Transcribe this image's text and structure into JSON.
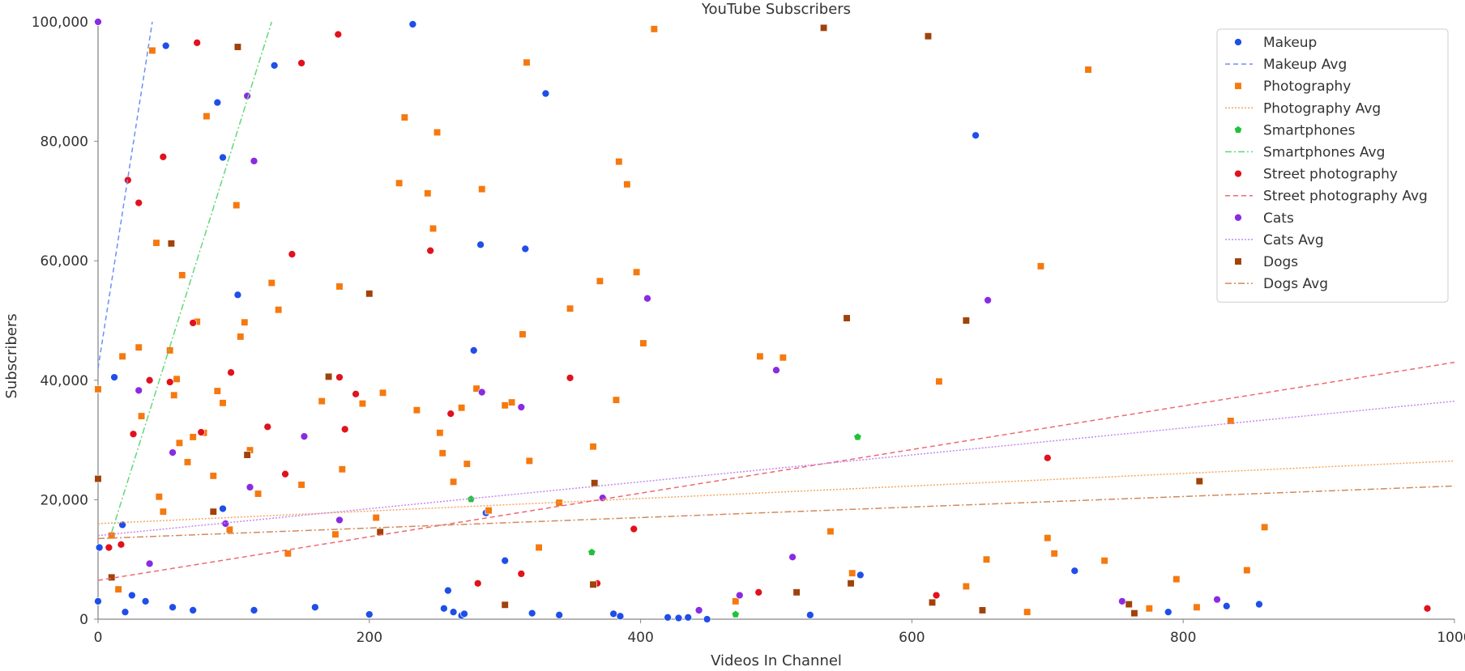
{
  "chart_data": {
    "type": "scatter",
    "title": "YouTube Subscribers",
    "xlabel": "Videos In Channel",
    "ylabel": "Subscribers",
    "xlim": [
      0,
      1000
    ],
    "ylim": [
      0,
      100000
    ],
    "x_ticks": [
      0,
      200,
      400,
      600,
      800,
      1000
    ],
    "x_tick_labels": [
      "0",
      "200",
      "400",
      "600",
      "800",
      "1000"
    ],
    "y_ticks": [
      0,
      20000,
      40000,
      60000,
      80000,
      100000
    ],
    "y_tick_labels": [
      "0",
      "20,000",
      "40,000",
      "60,000",
      "80,000",
      "100,000"
    ],
    "grid": false,
    "legend_position": "top-right",
    "series": [
      {
        "name": "Makeup",
        "color": "#1f4ee8",
        "marker": "circle",
        "points": [
          [
            0,
            100000
          ],
          [
            0,
            3000
          ],
          [
            1,
            12000
          ],
          [
            12,
            40500
          ],
          [
            18,
            15800
          ],
          [
            20,
            1200
          ],
          [
            25,
            4000
          ],
          [
            35,
            3000
          ],
          [
            50,
            96000
          ],
          [
            55,
            2000
          ],
          [
            70,
            1500
          ],
          [
            88,
            86500
          ],
          [
            92,
            77300
          ],
          [
            92,
            18500
          ],
          [
            103,
            54300
          ],
          [
            115,
            1500
          ],
          [
            130,
            92700
          ],
          [
            160,
            2000
          ],
          [
            200,
            800
          ],
          [
            232,
            99600
          ],
          [
            255,
            1800
          ],
          [
            258,
            4800
          ],
          [
            262,
            1200
          ],
          [
            268,
            600
          ],
          [
            270,
            900
          ],
          [
            277,
            45000
          ],
          [
            282,
            62700
          ],
          [
            286,
            17800
          ],
          [
            300,
            9800
          ],
          [
            315,
            62000
          ],
          [
            320,
            1000
          ],
          [
            330,
            88000
          ],
          [
            340,
            700
          ],
          [
            380,
            900
          ],
          [
            385,
            500
          ],
          [
            420,
            300
          ],
          [
            428,
            200
          ],
          [
            435,
            300
          ],
          [
            449,
            0
          ],
          [
            525,
            700
          ],
          [
            562,
            7400
          ],
          [
            647,
            81000
          ],
          [
            720,
            8100
          ],
          [
            789,
            1200
          ],
          [
            832,
            2200
          ],
          [
            856,
            2500
          ]
        ]
      },
      {
        "name": "Photography",
        "color": "#f5790f",
        "marker": "square",
        "points": [
          [
            0,
            38500
          ],
          [
            0,
            23500
          ],
          [
            10,
            14000
          ],
          [
            15,
            5000
          ],
          [
            18,
            44000
          ],
          [
            30,
            45500
          ],
          [
            32,
            34000
          ],
          [
            40,
            95200
          ],
          [
            43,
            63000
          ],
          [
            45,
            20500
          ],
          [
            48,
            18000
          ],
          [
            53,
            45000
          ],
          [
            56,
            37500
          ],
          [
            58,
            40200
          ],
          [
            60,
            29500
          ],
          [
            62,
            57600
          ],
          [
            66,
            26300
          ],
          [
            70,
            30500
          ],
          [
            73,
            49800
          ],
          [
            78,
            31200
          ],
          [
            80,
            84200
          ],
          [
            85,
            24000
          ],
          [
            88,
            38200
          ],
          [
            92,
            36200
          ],
          [
            97,
            15000
          ],
          [
            102,
            69300
          ],
          [
            105,
            47300
          ],
          [
            108,
            49700
          ],
          [
            112,
            28300
          ],
          [
            118,
            21000
          ],
          [
            128,
            56300
          ],
          [
            133,
            51800
          ],
          [
            140,
            11000
          ],
          [
            150,
            22500
          ],
          [
            165,
            36500
          ],
          [
            175,
            14200
          ],
          [
            178,
            55700
          ],
          [
            180,
            25100
          ],
          [
            195,
            36100
          ],
          [
            205,
            17000
          ],
          [
            210,
            37900
          ],
          [
            222,
            73000
          ],
          [
            226,
            84000
          ],
          [
            235,
            35000
          ],
          [
            243,
            71300
          ],
          [
            247,
            65400
          ],
          [
            250,
            81500
          ],
          [
            252,
            31200
          ],
          [
            254,
            27800
          ],
          [
            262,
            23000
          ],
          [
            268,
            35400
          ],
          [
            272,
            26000
          ],
          [
            279,
            38600
          ],
          [
            283,
            72000
          ],
          [
            288,
            18200
          ],
          [
            300,
            35800
          ],
          [
            305,
            36300
          ],
          [
            313,
            47700
          ],
          [
            316,
            93200
          ],
          [
            318,
            26500
          ],
          [
            325,
            12000
          ],
          [
            340,
            19500
          ],
          [
            348,
            52000
          ],
          [
            365,
            28900
          ],
          [
            370,
            56600
          ],
          [
            382,
            36700
          ],
          [
            384,
            76600
          ],
          [
            390,
            72800
          ],
          [
            397,
            58100
          ],
          [
            402,
            46200
          ],
          [
            410,
            98800
          ],
          [
            470,
            3000
          ],
          [
            488,
            44000
          ],
          [
            505,
            43800
          ],
          [
            540,
            14700
          ],
          [
            556,
            7700
          ],
          [
            620,
            39800
          ],
          [
            655,
            10000
          ],
          [
            695,
            59100
          ],
          [
            700,
            13600
          ],
          [
            705,
            11000
          ],
          [
            730,
            92000
          ],
          [
            742,
            9800
          ],
          [
            835,
            33200
          ],
          [
            847,
            8200
          ],
          [
            860,
            15400
          ],
          [
            640,
            5500
          ],
          [
            775,
            1800
          ],
          [
            795,
            6700
          ],
          [
            810,
            2000
          ],
          [
            685,
            1200
          ]
        ]
      },
      {
        "name": "Smartphones",
        "color": "#22c13a",
        "marker": "pentagon",
        "points": [
          [
            275,
            20100
          ],
          [
            364,
            11200
          ],
          [
            560,
            30500
          ],
          [
            470,
            800
          ]
        ]
      },
      {
        "name": "Street photography",
        "color": "#e0121d",
        "marker": "circle",
        "points": [
          [
            8,
            12000
          ],
          [
            17,
            12500
          ],
          [
            22,
            73500
          ],
          [
            26,
            31000
          ],
          [
            30,
            69700
          ],
          [
            38,
            40000
          ],
          [
            48,
            77400
          ],
          [
            53,
            39700
          ],
          [
            70,
            49600
          ],
          [
            73,
            96500
          ],
          [
            76,
            31300
          ],
          [
            98,
            41300
          ],
          [
            125,
            32200
          ],
          [
            138,
            24300
          ],
          [
            143,
            61100
          ],
          [
            150,
            93100
          ],
          [
            177,
            97900
          ],
          [
            178,
            40500
          ],
          [
            182,
            31800
          ],
          [
            190,
            37700
          ],
          [
            245,
            61700
          ],
          [
            260,
            34400
          ],
          [
            312,
            7600
          ],
          [
            348,
            40400
          ],
          [
            395,
            15100
          ],
          [
            618,
            4000
          ],
          [
            700,
            27000
          ],
          [
            980,
            1800
          ],
          [
            280,
            6000
          ],
          [
            368,
            6000
          ],
          [
            487,
            4500
          ]
        ]
      },
      {
        "name": "Cats",
        "color": "#8a2be2",
        "marker": "circle",
        "points": [
          [
            0,
            100000
          ],
          [
            30,
            38300
          ],
          [
            38,
            9300
          ],
          [
            55,
            27900
          ],
          [
            94,
            16000
          ],
          [
            110,
            87600
          ],
          [
            112,
            22100
          ],
          [
            115,
            76700
          ],
          [
            152,
            30600
          ],
          [
            178,
            16600
          ],
          [
            283,
            38000
          ],
          [
            312,
            35500
          ],
          [
            372,
            20300
          ],
          [
            405,
            53700
          ],
          [
            500,
            41700
          ],
          [
            512,
            10400
          ],
          [
            656,
            53400
          ],
          [
            755,
            3000
          ],
          [
            825,
            3300
          ],
          [
            473,
            4000
          ],
          [
            443,
            1500
          ]
        ]
      },
      {
        "name": "Dogs",
        "color": "#a0420a",
        "marker": "square",
        "points": [
          [
            0,
            23500
          ],
          [
            10,
            7000
          ],
          [
            54,
            62900
          ],
          [
            85,
            18000
          ],
          [
            103,
            95800
          ],
          [
            110,
            27500
          ],
          [
            170,
            40600
          ],
          [
            200,
            54500
          ],
          [
            208,
            14600
          ],
          [
            366,
            22800
          ],
          [
            535,
            99000
          ],
          [
            552,
            50400
          ],
          [
            555,
            6000
          ],
          [
            612,
            97600
          ],
          [
            615,
            2800
          ],
          [
            640,
            50000
          ],
          [
            652,
            1500
          ],
          [
            760,
            2500
          ],
          [
            812,
            23100
          ],
          [
            515,
            4500
          ],
          [
            764,
            1000
          ],
          [
            365,
            5800
          ],
          [
            300,
            2400
          ]
        ]
      }
    ],
    "trend_lines": [
      {
        "name": "Makeup Avg",
        "color": "#6f8ff5",
        "dash": "6,4",
        "from": [
          0,
          42000
        ],
        "to": [
          40,
          100000
        ]
      },
      {
        "name": "Photography Avg",
        "color": "#f5a660",
        "dash": "2,2",
        "from": [
          0,
          16000
        ],
        "to": [
          1000,
          26500
        ]
      },
      {
        "name": "Smartphones Avg",
        "color": "#66d67a",
        "dash": "8,3,2,3",
        "from": [
          10,
          14500
        ],
        "to": [
          128,
          100000
        ]
      },
      {
        "name": "Street photography Avg",
        "color": "#ee6a70",
        "dash": "6,4",
        "from": [
          0,
          6500
        ],
        "to": [
          1000,
          43000
        ]
      },
      {
        "name": "Cats Avg",
        "color": "#c589f0",
        "dash": "2,2",
        "from": [
          0,
          14000
        ],
        "to": [
          1000,
          36500
        ]
      },
      {
        "name": "Dogs Avg",
        "color": "#d08a5c",
        "dash": "8,3,2,3",
        "from": [
          0,
          13500
        ],
        "to": [
          1000,
          22300
        ]
      }
    ]
  }
}
